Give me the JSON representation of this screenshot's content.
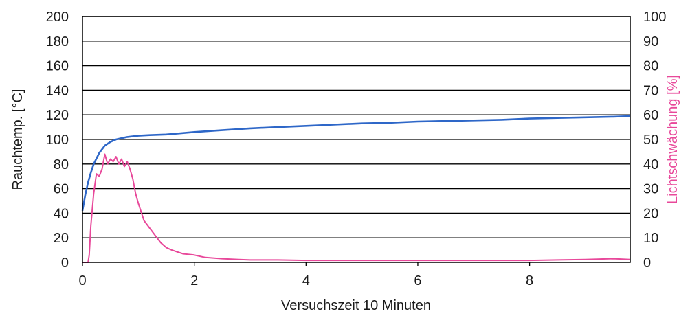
{
  "chart_data": {
    "type": "line",
    "title": "",
    "xlabel": "Versuchszeit 10 Minuten",
    "ylabel_left": "Rauchtemp. [°C]",
    "ylabel_right": "Lichtschwächung [%]",
    "xlim": [
      0,
      9.8
    ],
    "ylim_left": [
      0,
      200
    ],
    "ylim_right": [
      0,
      100
    ],
    "x_ticks": [
      "0",
      "2",
      "4",
      "6",
      "8"
    ],
    "y_left_ticks": [
      "0",
      "20",
      "40",
      "60",
      "80",
      "100",
      "120",
      "140",
      "160",
      "180",
      "200"
    ],
    "y_right_ticks": [
      "0",
      "10",
      "20",
      "30",
      "40",
      "50",
      "60",
      "70",
      "80",
      "90",
      "100"
    ],
    "grid": true,
    "series": [
      {
        "name": "",
        "axis": "left",
        "color": "#2e67c8",
        "x": [
          0,
          0.05,
          0.1,
          0.15,
          0.2,
          0.3,
          0.4,
          0.5,
          0.6,
          0.7,
          0.8,
          1.0,
          1.2,
          1.5,
          2.0,
          2.5,
          3.0,
          3.5,
          4.0,
          4.5,
          5.0,
          5.5,
          6.0,
          6.5,
          7.0,
          7.5,
          8.0,
          8.5,
          9.0,
          9.5,
          9.8
        ],
        "values": [
          42,
          55,
          65,
          73,
          80,
          89,
          95,
          98,
          100,
          101,
          102,
          103,
          103.5,
          104,
          106,
          107.5,
          109,
          110,
          111,
          112,
          113,
          113.5,
          114.5,
          115,
          115.5,
          116,
          117,
          117.5,
          118,
          118.5,
          119
        ]
      },
      {
        "name": "",
        "axis": "right",
        "color": "#e8489a",
        "x": [
          0,
          0.1,
          0.12,
          0.15,
          0.2,
          0.25,
          0.3,
          0.35,
          0.4,
          0.45,
          0.5,
          0.55,
          0.6,
          0.65,
          0.7,
          0.75,
          0.8,
          0.85,
          0.9,
          0.95,
          1.0,
          1.1,
          1.2,
          1.3,
          1.4,
          1.5,
          1.6,
          1.8,
          2.0,
          2.2,
          2.5,
          2.8,
          3.0,
          3.5,
          4.0,
          5.0,
          6.0,
          7.0,
          8.0,
          8.5,
          9.0,
          9.5,
          9.8
        ],
        "values": [
          0,
          0,
          3,
          15,
          28,
          36,
          35,
          38,
          44,
          40,
          42,
          41,
          43,
          40,
          42,
          39,
          41,
          38,
          34,
          28,
          24,
          17,
          14,
          11,
          8,
          6,
          5,
          3.5,
          3,
          2,
          1.5,
          1.2,
          1,
          1,
          0.8,
          0.8,
          0.8,
          0.8,
          0.8,
          1,
          1.2,
          1.5,
          1.2
        ]
      }
    ]
  }
}
